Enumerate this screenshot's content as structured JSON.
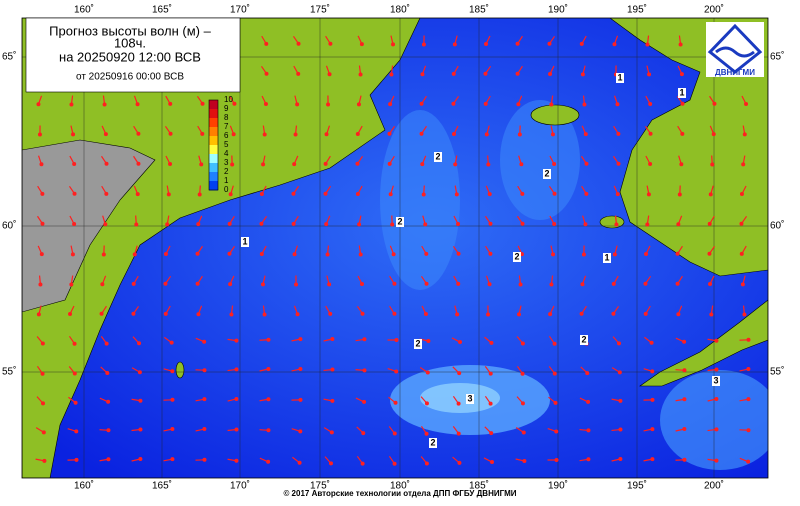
{
  "header": {
    "title_lines": [
      "Прогноз высоты волн (м) –",
      "108ч.",
      "на 20250920 12:00 ВСВ",
      "от 20250916 00:00 ВСВ"
    ]
  },
  "logo": {
    "label": "ДВНИГМИ"
  },
  "map": {
    "lon_labels": [
      "160˚",
      "165˚",
      "170˚",
      "175˚",
      "180˚",
      "185˚",
      "190˚",
      "195˚",
      "200˚"
    ],
    "lat_labels": [
      "65˚",
      "60˚",
      "55˚"
    ],
    "contour_labels": [
      "1",
      "1",
      "1",
      "1",
      "2",
      "2",
      "2",
      "2",
      "2",
      "2",
      "2",
      "3",
      "3"
    ]
  },
  "colorbar": {
    "ticks": [
      "10",
      "9",
      "8",
      "7",
      "6",
      "5",
      "4",
      "3",
      "2",
      "1",
      "0"
    ]
  },
  "footer": "© 2017 Авторские технологии отдела ДПП ФГБУ ДВНИГМИ"
}
